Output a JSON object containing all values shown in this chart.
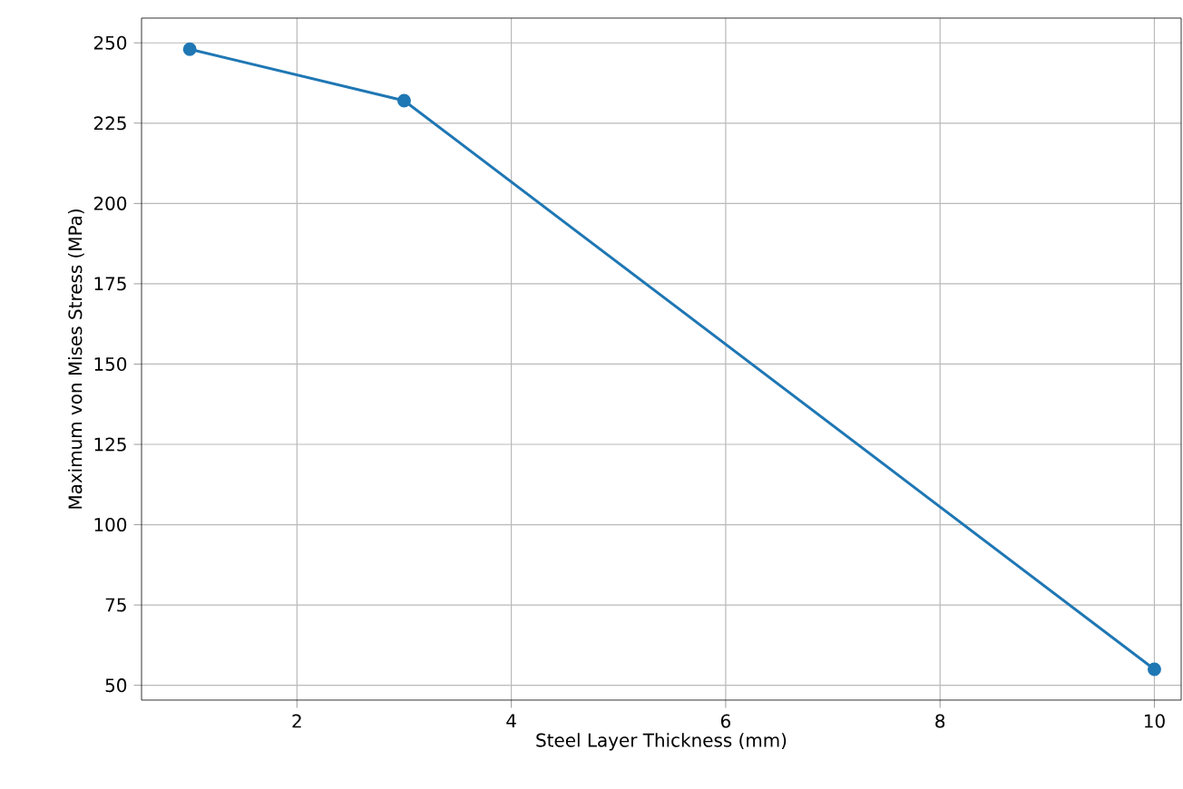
{
  "chart_data": {
    "type": "line",
    "xlabel": "Steel Layer Thickness (mm)",
    "ylabel": "Maximum von Mises Stress (MPa)",
    "x": [
      1,
      3,
      10
    ],
    "series": [
      {
        "color": "#1f77b4",
        "values": [
          248,
          232,
          55
        ]
      }
    ],
    "xlim": [
      0.55,
      10.25
    ],
    "ylim": [
      45.4,
      257.7
    ],
    "xticks": [
      2,
      4,
      6,
      8,
      10
    ],
    "yticks": [
      50,
      75,
      100,
      125,
      150,
      175,
      200,
      225,
      250
    ],
    "grid": true,
    "marker": "circle",
    "line_style": "solid"
  }
}
